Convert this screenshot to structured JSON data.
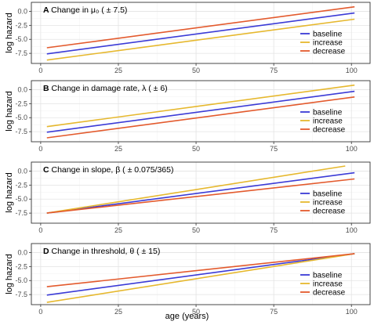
{
  "figure": {
    "x_axis_label": "age (years)"
  },
  "chart_data": [
    {
      "type": "line",
      "panel_letter": "A",
      "title": "Change in μ₀ ( ± 7.5)",
      "ylabel": "log hazard",
      "xlim": [
        -3,
        106
      ],
      "ylim": [
        -9.3,
        1.6
      ],
      "xticks": [
        0,
        25,
        50,
        75,
        100
      ],
      "xtick_labels": [
        "0",
        "25",
        "50",
        "75",
        "100"
      ],
      "yticks": [
        -7.5,
        -5.0,
        -2.5,
        0.0
      ],
      "ytick_labels": [
        "-7.5",
        "-5.0",
        "-2.5",
        "0.0"
      ],
      "grid": true,
      "legend": "right",
      "series": [
        {
          "name": "baseline",
          "color": "#3b3bd6",
          "x": [
            2,
            101
          ],
          "y": [
            -7.6,
            -0.3
          ]
        },
        {
          "name": "increase",
          "color": "#e6b82e",
          "x": [
            2,
            101
          ],
          "y": [
            -8.7,
            -1.4
          ]
        },
        {
          "name": "decrease",
          "color": "#e35a2d",
          "x": [
            2,
            101
          ],
          "y": [
            -6.5,
            0.8
          ]
        }
      ]
    },
    {
      "type": "line",
      "panel_letter": "B",
      "title": "Change in damage rate, λ ( ± 6)",
      "ylabel": "log hazard",
      "xlim": [
        -3,
        106
      ],
      "ylim": [
        -9.3,
        1.6
      ],
      "xticks": [
        0,
        25,
        50,
        75,
        100
      ],
      "xtick_labels": [
        "0",
        "25",
        "50",
        "75",
        "100"
      ],
      "yticks": [
        -7.5,
        -5.0,
        -2.5,
        0.0
      ],
      "ytick_labels": [
        "-7.5",
        "-5.0",
        "-2.5",
        "0.0"
      ],
      "grid": true,
      "legend": "right",
      "series": [
        {
          "name": "baseline",
          "color": "#3b3bd6",
          "x": [
            2,
            101
          ],
          "y": [
            -7.6,
            -0.3
          ]
        },
        {
          "name": "increase",
          "color": "#e6b82e",
          "x": [
            2,
            101
          ],
          "y": [
            -6.6,
            0.8
          ]
        },
        {
          "name": "decrease",
          "color": "#e35a2d",
          "x": [
            2,
            101
          ],
          "y": [
            -8.6,
            -1.3
          ]
        }
      ]
    },
    {
      "type": "line",
      "panel_letter": "C",
      "title": "Change in slope, β ( ± 0.075/365)",
      "ylabel": "log hazard",
      "xlim": [
        -3,
        106
      ],
      "ylim": [
        -9.3,
        1.6
      ],
      "xticks": [
        0,
        25,
        50,
        75,
        100
      ],
      "xtick_labels": [
        "0",
        "25",
        "50",
        "75",
        "100"
      ],
      "yticks": [
        -7.5,
        -5.0,
        -2.5,
        0.0
      ],
      "ytick_labels": [
        "-7.5",
        "-5.0",
        "-2.5",
        "0.0"
      ],
      "grid": true,
      "legend": "right",
      "series": [
        {
          "name": "baseline",
          "color": "#3b3bd6",
          "x": [
            2,
            101
          ],
          "y": [
            -7.5,
            -0.3
          ]
        },
        {
          "name": "increase",
          "color": "#e6b82e",
          "x": [
            2,
            98
          ],
          "y": [
            -7.5,
            0.9
          ]
        },
        {
          "name": "decrease",
          "color": "#e35a2d",
          "x": [
            2,
            101
          ],
          "y": [
            -7.5,
            -1.4
          ]
        }
      ]
    },
    {
      "type": "line",
      "panel_letter": "D",
      "title": "Change in threshold, θ ( ± 15)",
      "ylabel": "log hazard",
      "xlim": [
        -3,
        106
      ],
      "ylim": [
        -9.3,
        1.6
      ],
      "xticks": [
        0,
        25,
        50,
        75,
        100
      ],
      "xtick_labels": [
        "0",
        "25",
        "50",
        "75",
        "100"
      ],
      "yticks": [
        -7.5,
        -5.0,
        -2.5,
        0.0
      ],
      "ytick_labels": [
        "-7.5",
        "-5.0",
        "-2.5",
        "0.0"
      ],
      "grid": true,
      "legend": "right",
      "series": [
        {
          "name": "baseline",
          "color": "#3b3bd6",
          "x": [
            2,
            101
          ],
          "y": [
            -7.6,
            -0.2
          ]
        },
        {
          "name": "increase",
          "color": "#e6b82e",
          "x": [
            2,
            101
          ],
          "y": [
            -8.9,
            -0.2
          ]
        },
        {
          "name": "decrease",
          "color": "#e35a2d",
          "x": [
            2,
            101
          ],
          "y": [
            -6.1,
            -0.2
          ]
        }
      ]
    }
  ]
}
